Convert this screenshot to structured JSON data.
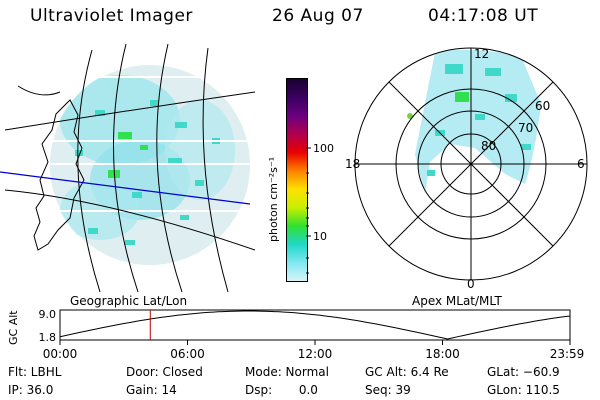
{
  "header": {
    "instrument": "Ultraviolet Imager",
    "date": "26 Aug 07",
    "time": "04:17:08 UT"
  },
  "geo_panel": {
    "caption": "Geographic Lat/Lon"
  },
  "polar_panel": {
    "caption": "Apex  MLat/MLT",
    "mlt_labels": {
      "top": "12",
      "left": "18",
      "right": "6",
      "bottom": "0"
    },
    "lat_labels": [
      "60",
      "70",
      "80"
    ]
  },
  "colorbar": {
    "unit_label": "photon cm⁻²s⁻¹",
    "ticks": [
      "100",
      "10"
    ],
    "colors": [
      "#1a0030",
      "#3a0060",
      "#6a0080",
      "#b00050",
      "#e80000",
      "#ff8000",
      "#ffe000",
      "#c8f000",
      "#30e030",
      "#20d8c8",
      "#80e8f0",
      "#d8f4f8"
    ]
  },
  "altitude_plot": {
    "ylabel": "GC Alt",
    "yticks": [
      "9.0",
      "1.8"
    ],
    "xticks": [
      "00:00",
      "06:00",
      "12:00",
      "18:00",
      "23:59"
    ],
    "current_time_fraction": 0.177,
    "curve_color": "#000000",
    "marker_color": "#c00000"
  },
  "info": {
    "row1": {
      "flt": "Flt: LBHL",
      "door": "Door: Closed",
      "mode": "Mode: Normal",
      "gc_alt": "GC Alt: 6.4 Re",
      "glat": "GLat: −60.9"
    },
    "row2": {
      "ip": "IP: 36.0",
      "gain": "Gain: 14",
      "dsp": "Dsp:       0.0",
      "seq": "Seq: 39",
      "glon": "GLon: 110.5"
    }
  }
}
